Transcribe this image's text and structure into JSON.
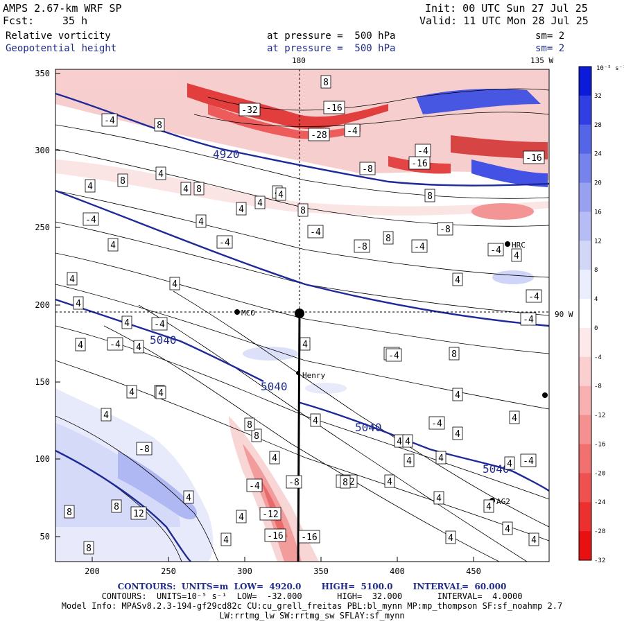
{
  "header": {
    "model": "AMPS 2.67-km WRF SP",
    "init": "Init: 00 UTC Sun 27 Jul 25",
    "fcst_label": "Fcst:",
    "fcst_value": "35 h",
    "valid": "Valid: 11 UTC Mon 28 Jul 25",
    "field1": "Relative vorticity",
    "field2": "Geopotential height",
    "pressure1": "at pressure =  500 hPa",
    "pressure2": "at pressure =  500 hPa",
    "sm1": "sm= 2",
    "sm2": "sm= 2",
    "lon_top_180": "180",
    "lon_top_135w": "135 W",
    "lon_right_90w": "90 W"
  },
  "axes": {
    "x_ticks": [
      "200",
      "250",
      "300",
      "350",
      "400",
      "450"
    ],
    "y_ticks": [
      "350",
      "300",
      "250",
      "200",
      "150",
      "100",
      "50"
    ]
  },
  "colorbar": {
    "units": "10⁻⁵ s⁻¹",
    "labels": [
      "32",
      "28",
      "24",
      "20",
      "16",
      "12",
      "8",
      "4",
      "0",
      "-4",
      "-8",
      "-12",
      "-16",
      "-20",
      "-24",
      "-28",
      "-32"
    ],
    "colors": [
      "#0b1bd9",
      "#2f3fe3",
      "#5565e8",
      "#7683ec",
      "#97a1f0",
      "#b5bdf4",
      "#d2d7f8",
      "#ebeefc",
      "#ffffff",
      "#fde9e9",
      "#fbcfcf",
      "#f8b0b0",
      "#f59090",
      "#f27070",
      "#ef5050",
      "#ec3030",
      "#e81010"
    ]
  },
  "stations": {
    "mcmurdo": "MCO",
    "henry": "Henry",
    "hrc": "HRC",
    "ag2": "AG2"
  },
  "height_labels": [
    "4920",
    "5040",
    "5040",
    "5040",
    "5040"
  ],
  "vort_labels": [
    "-4",
    "8",
    "-32",
    "8",
    "-16",
    "-28",
    "-4",
    "-8",
    "-16",
    "-4",
    "-16",
    "8",
    "4",
    "4",
    "4",
    "8",
    "4",
    "4",
    "8",
    "4",
    "4",
    "-4",
    "-4",
    "4",
    "-4",
    "-8",
    "8",
    "-4",
    "-8",
    "4",
    "-4",
    "4",
    "4",
    "-4",
    "4",
    "4",
    "-4",
    "4",
    "-4",
    "4",
    "4",
    "4",
    "4",
    "8",
    "4",
    "4",
    "-4",
    "8",
    "4",
    "-4",
    "-4",
    "4",
    "4",
    "-4",
    "4",
    "4",
    "4",
    "4",
    "4",
    "8",
    "-8",
    "4",
    "-8",
    "-4",
    "-12",
    "-16",
    "-16",
    "-12",
    "4",
    "4",
    "4",
    "4",
    "4",
    "4",
    "8",
    "4",
    "8",
    "8",
    "12",
    "4",
    "4",
    "4",
    "8",
    "-4",
    "4",
    "8",
    "4"
  ],
  "footer": {
    "line1": "CONTOURS:  UNITS=m  LOW=  4920.0       HIGH=  5100.0       INTERVAL=  60.000",
    "line2": "CONTOURS:  UNITS=10⁻⁵ s⁻¹  LOW=  -32.000       HIGH=  32.000       INTERVAL=  4.0000",
    "line3": "Model Info: MPASv8.2.3-194-gf29cd82c CU:cu_grell_freitas PBL:bl_mynn MP:mp_thompson SF:sf_noahmp 2.7",
    "line4": "LW:rrtmg_lw SW:rrtmg_sw SFLAY:sf_mynn"
  },
  "colors": {
    "height_contour": "#1e2a9b",
    "header_blue": "#1e2a9b"
  }
}
